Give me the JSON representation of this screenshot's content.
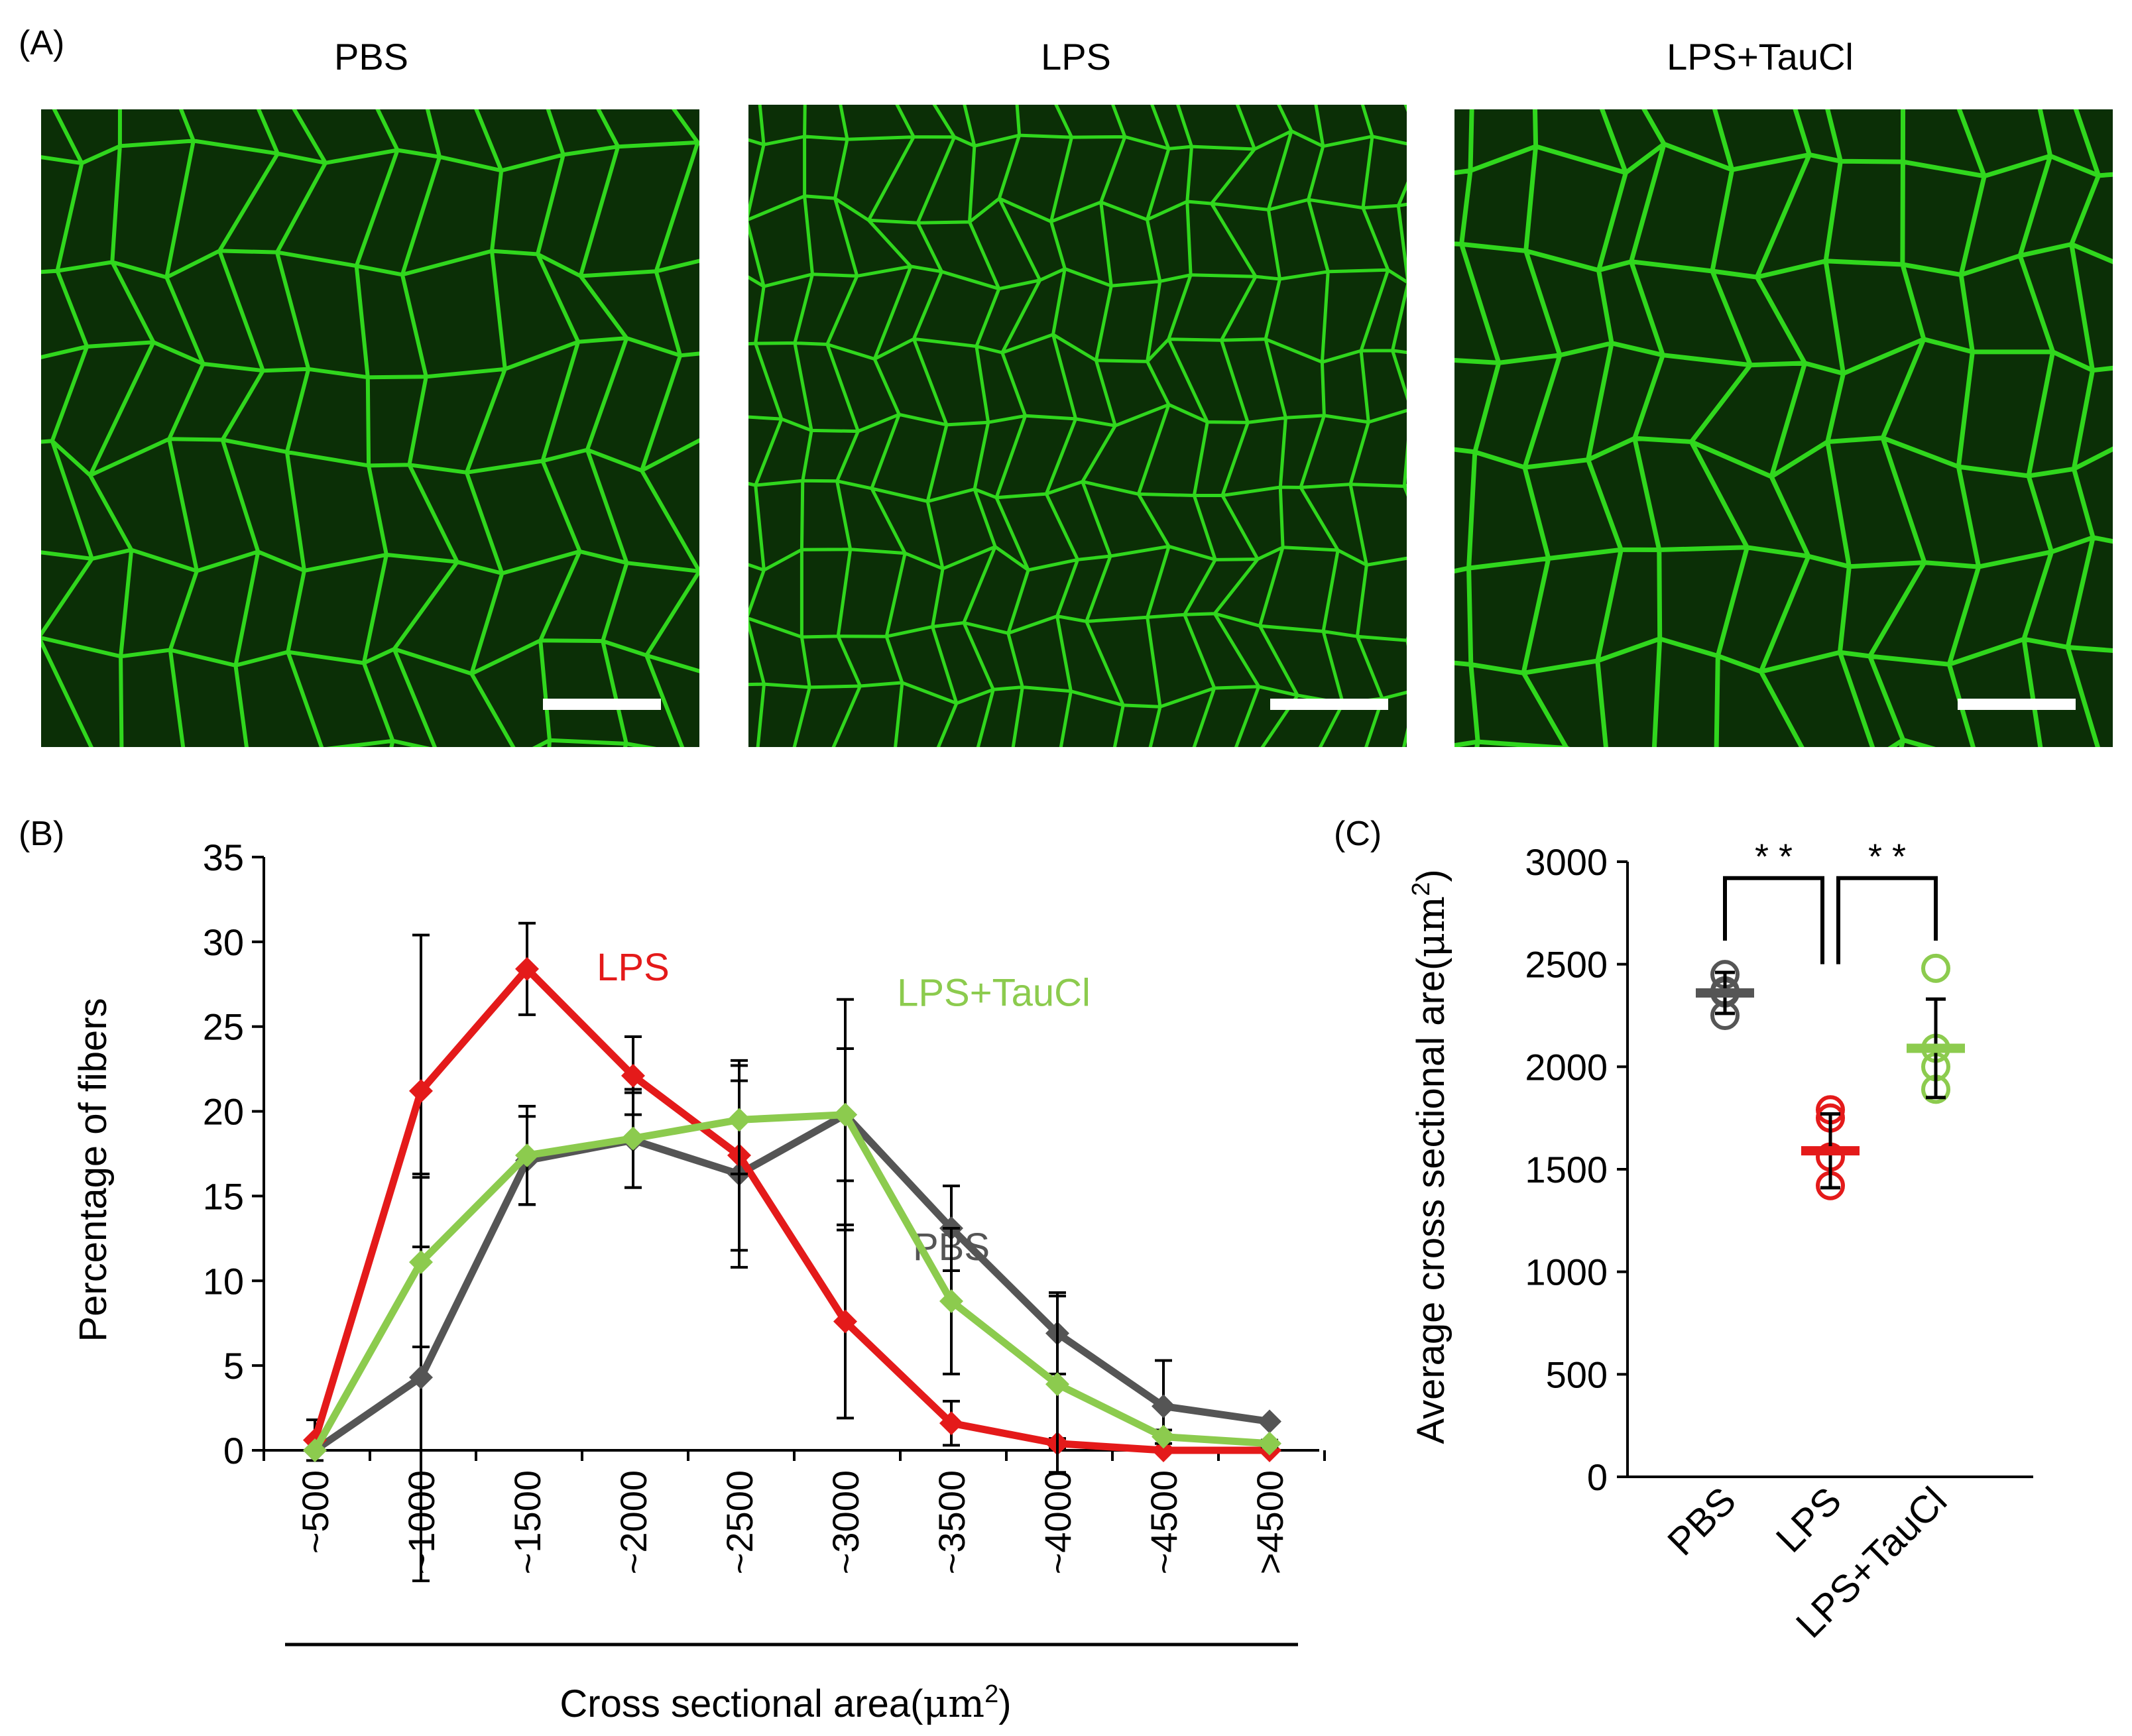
{
  "figure": {
    "panel_a": {
      "label": "(A)",
      "micrographs": [
        {
          "title": "PBS",
          "pattern": "large-fibers"
        },
        {
          "title": "LPS",
          "pattern": "small-fibers"
        },
        {
          "title": "LPS+TauCl",
          "pattern": "large-fibers"
        }
      ],
      "scale_bar_color": "#ffffff",
      "background_color": "#0b2f06",
      "membrane_color": "#33e01f"
    },
    "panel_b": {
      "label": "(B)"
    },
    "panel_c": {
      "label": "(C)"
    }
  },
  "chart_data": [
    {
      "type": "line",
      "panel": "B",
      "title": "",
      "xlabel": "Cross sectional area(μm²)",
      "xlabel_main": "Cross sectional area(",
      "xlabel_unit": "μm",
      "xlabel_sup": "2",
      "xlabel_close": ")",
      "ylabel": "Percentage of fibers",
      "ylim": [
        0,
        35
      ],
      "yticks": [
        0,
        5,
        10,
        15,
        20,
        25,
        30,
        35
      ],
      "categories": [
        "~500",
        "~1000",
        "~1500",
        "~2000",
        "~2500",
        "~3000",
        "~3500",
        "~4000",
        "~4500",
        ">4500"
      ],
      "grid": false,
      "series": [
        {
          "name": "PBS",
          "color": "#555555",
          "values": [
            0,
            4.3,
            17.1,
            18.3,
            16.3,
            19.8,
            13.1,
            6.9,
            2.6,
            1.7
          ],
          "errors": [
            0,
            12,
            2.6,
            2.8,
            5.5,
            6.8,
            2.5,
            2.4,
            2.7,
            0
          ],
          "label_pos": [
            3500,
            12
          ]
        },
        {
          "name": "LPS",
          "color": "#e41a1a",
          "values": [
            0.6,
            21.2,
            28.4,
            22.1,
            17.4,
            7.6,
            1.6,
            0.4,
            0,
            0
          ],
          "errors": [
            1.2,
            9.2,
            2.7,
            2.3,
            5.6,
            5.7,
            1.3,
            0.3,
            0,
            0
          ],
          "label_pos": [
            2000,
            28.5
          ]
        },
        {
          "name": "LPS+TauCl",
          "color": "#8ccb4e",
          "values": [
            0,
            11.1,
            17.4,
            18.4,
            19.5,
            19.8,
            8.8,
            3.9,
            0.8,
            0.4
          ],
          "errors": [
            0,
            5,
            2.9,
            2.9,
            3.2,
            3.9,
            4.3,
            5.2,
            0.4,
            0.2
          ],
          "label_pos": [
            3700,
            27
          ]
        }
      ]
    },
    {
      "type": "scatter",
      "panel": "C",
      "title": "",
      "xlabel": "",
      "ylabel": "Average cross sectional are(μm²)",
      "ylabel_main": "Average cross sectional are(",
      "ylabel_unit": "μm",
      "ylabel_sup": "2",
      "ylabel_close": ")",
      "ylim": [
        0,
        3000
      ],
      "yticks": [
        0,
        500,
        1000,
        1500,
        2000,
        2500,
        3000
      ],
      "categories": [
        "PBS",
        "LPS",
        "LPS+TauCl"
      ],
      "grid": false,
      "groups": [
        {
          "name": "PBS",
          "color": "#555555",
          "mean": 2360,
          "sd": 100,
          "points": [
            2450,
            2370,
            2360,
            2250
          ]
        },
        {
          "name": "LPS",
          "color": "#e41a1a",
          "mean": 1590,
          "sd": 180,
          "points": [
            1790,
            1750,
            1560,
            1420
          ]
        },
        {
          "name": "LPS+TauCl",
          "color": "#8ccb4e",
          "mean": 2090,
          "sd": 240,
          "points": [
            2480,
            2090,
            2000,
            1890
          ]
        }
      ],
      "significance": [
        {
          "from": "PBS",
          "to": "LPS",
          "label": "* *",
          "level": 2920
        },
        {
          "from": "LPS",
          "to": "LPS+TauCl",
          "label": "* *",
          "level": 2920
        }
      ]
    }
  ]
}
